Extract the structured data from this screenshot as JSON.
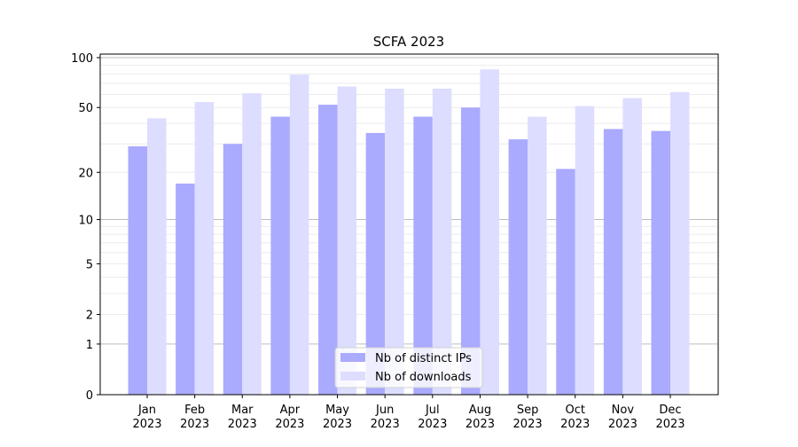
{
  "chart_data": {
    "type": "bar",
    "title": "SCFA 2023",
    "xlabel": "",
    "ylabel": "",
    "yscale": "log(1+y)",
    "ylim": [
      0,
      105
    ],
    "yticks": [
      0,
      1,
      2,
      5,
      10,
      20,
      50,
      100
    ],
    "grid": true,
    "legend_position": "bottom-center",
    "categories": [
      "Jan\n2023",
      "Feb\n2023",
      "Mar\n2023",
      "Apr\n2023",
      "May\n2023",
      "Jun\n2023",
      "Jul\n2023",
      "Aug\n2023",
      "Sep\n2023",
      "Oct\n2023",
      "Nov\n2023",
      "Dec\n2023"
    ],
    "series": [
      {
        "name": "Nb of distinct IPs",
        "color": "#aaaaff",
        "values": [
          29,
          17,
          30,
          44,
          52,
          35,
          44,
          50,
          32,
          21,
          37,
          36
        ]
      },
      {
        "name": "Nb of downloads",
        "color": "#ddddff",
        "values": [
          43,
          54,
          61,
          79,
          67,
          65,
          65,
          85,
          44,
          51,
          57,
          62
        ]
      }
    ]
  }
}
